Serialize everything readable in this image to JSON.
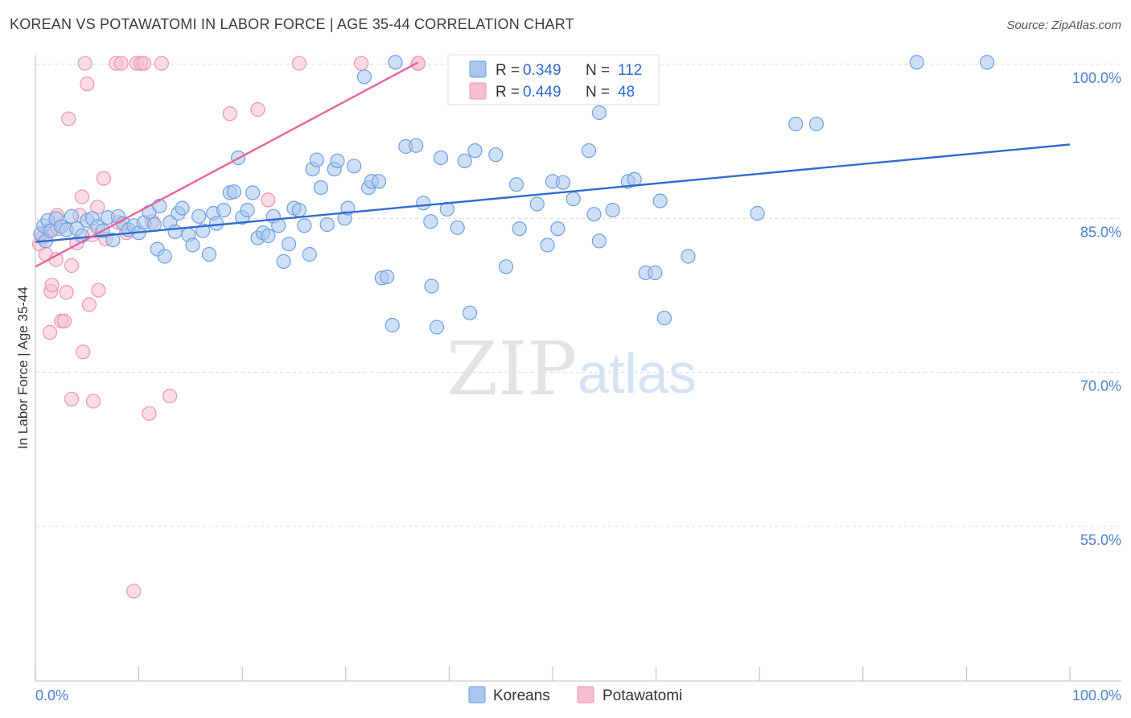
{
  "header": {
    "title": "KOREAN VS POTAWATOMI IN LABOR FORCE | AGE 35-44 CORRELATION CHART",
    "source": "Source: ZipAtlas.com"
  },
  "colors": {
    "blue_fill": "#a8c6ef",
    "blue_stroke": "#6e9fe0",
    "blue_line": "#2f6cd0",
    "pink_fill": "#f6bfd0",
    "pink_stroke": "#ec93b1",
    "pink_line": "#e8659a",
    "grid": "#d9d9d9",
    "tick_label": "#4a7fd1"
  },
  "watermark": {
    "zip": "ZIP",
    "atlas": "atlas"
  },
  "chart_data": {
    "type": "scatter",
    "xlabel": "",
    "ylabel": "In Labor Force | Age 35-44",
    "xlim": [
      0,
      100
    ],
    "ylim": [
      40,
      103
    ],
    "x_tick_labels": {
      "left": "0.0%",
      "right": "100.0%"
    },
    "y_ticks": [
      {
        "value": 100,
        "label": "100.0%"
      },
      {
        "value": 85,
        "label": "85.0%"
      },
      {
        "value": 70,
        "label": "70.0%"
      },
      {
        "value": 55,
        "label": "55.0%"
      }
    ],
    "grid": true,
    "legend": {
      "placement": "top-center",
      "rows": [
        {
          "r_label": "R =",
          "r_value": "0.349",
          "n_label": "N =",
          "n_value": "112"
        },
        {
          "r_label": "R =",
          "r_value": "0.449",
          "n_label": "N =",
          "n_value": "48"
        }
      ]
    },
    "series": [
      {
        "name": "Koreans",
        "trend": {
          "x": [
            0,
            100
          ],
          "y": [
            82.7,
            92.2
          ]
        },
        "points": [
          [
            0.5,
            83.5
          ],
          [
            0.8,
            84.3
          ],
          [
            1.0,
            82.8
          ],
          [
            1.2,
            84.8
          ],
          [
            1.5,
            83.8
          ],
          [
            2.0,
            85.0
          ],
          [
            2.5,
            84.2
          ],
          [
            3.0,
            83.9
          ],
          [
            3.5,
            85.2
          ],
          [
            4.0,
            84.0
          ],
          [
            4.5,
            83.3
          ],
          [
            5.0,
            84.8
          ],
          [
            5.5,
            85.0
          ],
          [
            6.0,
            84.2
          ],
          [
            6.5,
            83.8
          ],
          [
            7.0,
            85.1
          ],
          [
            7.5,
            82.9
          ],
          [
            8.0,
            85.2
          ],
          [
            8.5,
            84.5
          ],
          [
            9.0,
            83.9
          ],
          [
            9.5,
            84.3
          ],
          [
            10.0,
            83.6
          ],
          [
            10.5,
            84.6
          ],
          [
            11.0,
            85.6
          ],
          [
            11.5,
            84.4
          ],
          [
            11.8,
            82.0
          ],
          [
            12.0,
            86.2
          ],
          [
            12.5,
            81.3
          ],
          [
            13.0,
            84.6
          ],
          [
            13.5,
            83.7
          ],
          [
            13.8,
            85.5
          ],
          [
            14.2,
            86.0
          ],
          [
            14.8,
            83.4
          ],
          [
            15.2,
            82.4
          ],
          [
            15.8,
            85.2
          ],
          [
            16.2,
            83.8
          ],
          [
            16.8,
            81.5
          ],
          [
            17.2,
            85.5
          ],
          [
            17.5,
            84.5
          ],
          [
            18.2,
            85.8
          ],
          [
            18.8,
            87.5
          ],
          [
            19.2,
            87.6
          ],
          [
            19.6,
            90.9
          ],
          [
            20.0,
            85.1
          ],
          [
            20.5,
            85.8
          ],
          [
            21.0,
            87.5
          ],
          [
            21.5,
            83.1
          ],
          [
            22.0,
            83.6
          ],
          [
            22.5,
            83.3
          ],
          [
            23.0,
            85.2
          ],
          [
            23.5,
            84.3
          ],
          [
            24.0,
            80.8
          ],
          [
            24.5,
            82.5
          ],
          [
            25.0,
            86.0
          ],
          [
            25.5,
            85.8
          ],
          [
            26.0,
            84.3
          ],
          [
            26.5,
            81.5
          ],
          [
            26.8,
            89.8
          ],
          [
            27.2,
            90.7
          ],
          [
            27.6,
            88.0
          ],
          [
            28.2,
            84.4
          ],
          [
            28.9,
            89.8
          ],
          [
            29.2,
            90.6
          ],
          [
            29.9,
            85.0
          ],
          [
            30.2,
            86.0
          ],
          [
            30.8,
            90.1
          ],
          [
            31.8,
            98.8
          ],
          [
            32.2,
            88.0
          ],
          [
            32.5,
            88.6
          ],
          [
            33.2,
            88.6
          ],
          [
            33.5,
            79.2
          ],
          [
            34.0,
            79.3
          ],
          [
            34.8,
            100.2
          ],
          [
            34.5,
            74.6
          ],
          [
            35.8,
            92.0
          ],
          [
            36.8,
            92.1
          ],
          [
            37.5,
            86.5
          ],
          [
            38.2,
            84.7
          ],
          [
            38.3,
            78.4
          ],
          [
            38.8,
            74.4
          ],
          [
            39.2,
            90.9
          ],
          [
            39.8,
            85.9
          ],
          [
            40.8,
            84.1
          ],
          [
            41.5,
            90.6
          ],
          [
            42.0,
            75.8
          ],
          [
            42.5,
            91.6
          ],
          [
            44.5,
            91.2
          ],
          [
            45.5,
            80.3
          ],
          [
            46.5,
            88.3
          ],
          [
            46.8,
            84.0
          ],
          [
            48.5,
            86.4
          ],
          [
            49.5,
            82.4
          ],
          [
            50.0,
            88.6
          ],
          [
            50.5,
            84.0
          ],
          [
            51.0,
            88.5
          ],
          [
            52.0,
            86.9
          ],
          [
            53.5,
            91.6
          ],
          [
            54.0,
            85.4
          ],
          [
            54.5,
            95.3
          ],
          [
            54.5,
            82.8
          ],
          [
            55.8,
            85.8
          ],
          [
            57.3,
            88.6
          ],
          [
            57.9,
            88.8
          ],
          [
            59.0,
            79.7
          ],
          [
            59.9,
            79.7
          ],
          [
            60.4,
            86.7
          ],
          [
            60.8,
            75.3
          ],
          [
            63.1,
            81.3
          ],
          [
            69.8,
            85.5
          ],
          [
            73.5,
            94.2
          ],
          [
            75.5,
            94.2
          ],
          [
            85.2,
            100.2
          ],
          [
            92.0,
            100.2
          ]
        ]
      },
      {
        "name": "Potawatomi",
        "trend": {
          "x": [
            0,
            37
          ],
          "y": [
            80.3,
            100.2
          ]
        },
        "points": [
          [
            0.4,
            82.5
          ],
          [
            0.7,
            83.2
          ],
          [
            1.0,
            81.5
          ],
          [
            1.2,
            83.8
          ],
          [
            1.4,
            73.9
          ],
          [
            1.5,
            77.9
          ],
          [
            1.6,
            78.5
          ],
          [
            2.0,
            81.0
          ],
          [
            2.1,
            85.3
          ],
          [
            2.2,
            84.0
          ],
          [
            2.5,
            75.0
          ],
          [
            2.8,
            75.0
          ],
          [
            3.0,
            77.8
          ],
          [
            3.2,
            94.7
          ],
          [
            3.5,
            80.4
          ],
          [
            3.5,
            67.4
          ],
          [
            4.0,
            82.6
          ],
          [
            4.3,
            85.3
          ],
          [
            4.5,
            87.1
          ],
          [
            4.6,
            72.0
          ],
          [
            4.8,
            100.1
          ],
          [
            5.0,
            98.1
          ],
          [
            5.2,
            76.6
          ],
          [
            5.5,
            83.4
          ],
          [
            5.6,
            67.2
          ],
          [
            6.0,
            86.1
          ],
          [
            6.1,
            78.0
          ],
          [
            6.6,
            88.9
          ],
          [
            6.8,
            83.0
          ],
          [
            7.8,
            100.1
          ],
          [
            8.0,
            84.6
          ],
          [
            8.3,
            100.1
          ],
          [
            8.8,
            83.6
          ],
          [
            9.5,
            48.7
          ],
          [
            9.8,
            100.1
          ],
          [
            10.2,
            100.1
          ],
          [
            10.5,
            100.1
          ],
          [
            11.0,
            66.0
          ],
          [
            11.3,
            84.7
          ],
          [
            12.2,
            100.1
          ],
          [
            13.0,
            67.7
          ],
          [
            18.8,
            95.2
          ],
          [
            21.5,
            95.6
          ],
          [
            22.5,
            86.8
          ],
          [
            25.5,
            100.1
          ],
          [
            31.5,
            100.1
          ],
          [
            37.0,
            100.1
          ],
          [
            37.0,
            100.1
          ]
        ]
      }
    ]
  },
  "bottom_legend": {
    "koreans": "Koreans",
    "potawatomi": "Potawatomi"
  }
}
